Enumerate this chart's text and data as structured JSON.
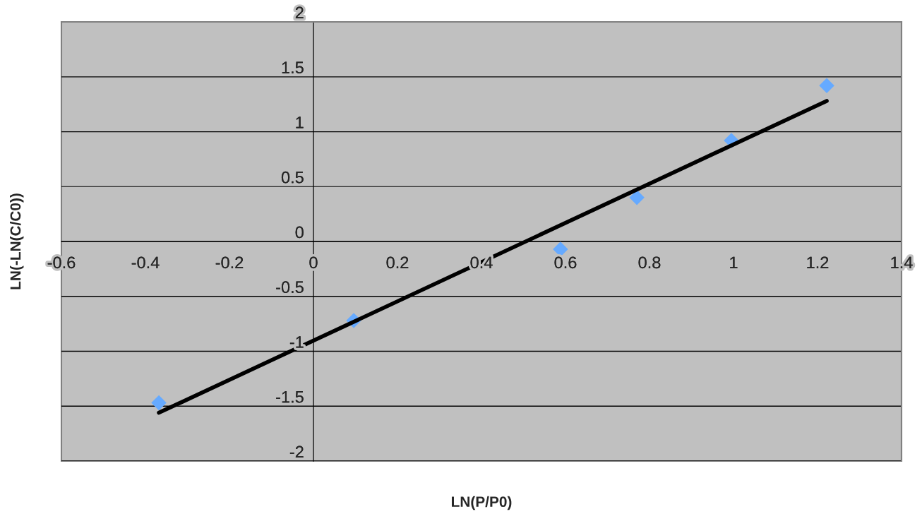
{
  "chart_data": {
    "type": "scatter",
    "xlabel": "LN(P/P0)",
    "ylabel": "LN(-LN(C/C0))",
    "xlim": [
      -0.6,
      1.4
    ],
    "xticks": [
      -0.6,
      -0.4,
      -0.2,
      0,
      0.2,
      0.4,
      0.6,
      0.8,
      1,
      1.2,
      1.4
    ],
    "ylim": [
      -2,
      2
    ],
    "yticks": [
      -2,
      -1.5,
      -1,
      -0.5,
      0,
      0.5,
      1,
      1.5,
      2
    ],
    "grid": "y",
    "series": [
      {
        "marker": "diamond",
        "color": "#66aaff",
        "x": [
          -0.368,
          0.096,
          0.588,
          0.77,
          0.995,
          1.222
        ],
        "values": [
          -1.47,
          -0.72,
          -0.07,
          0.4,
          0.92,
          1.42
        ]
      },
      {
        "type": "line",
        "marker": "none",
        "line_style": "solid",
        "color": "#000000",
        "x": [
          -0.368,
          1.222
        ],
        "values": [
          -1.56,
          1.28
        ]
      }
    ]
  }
}
